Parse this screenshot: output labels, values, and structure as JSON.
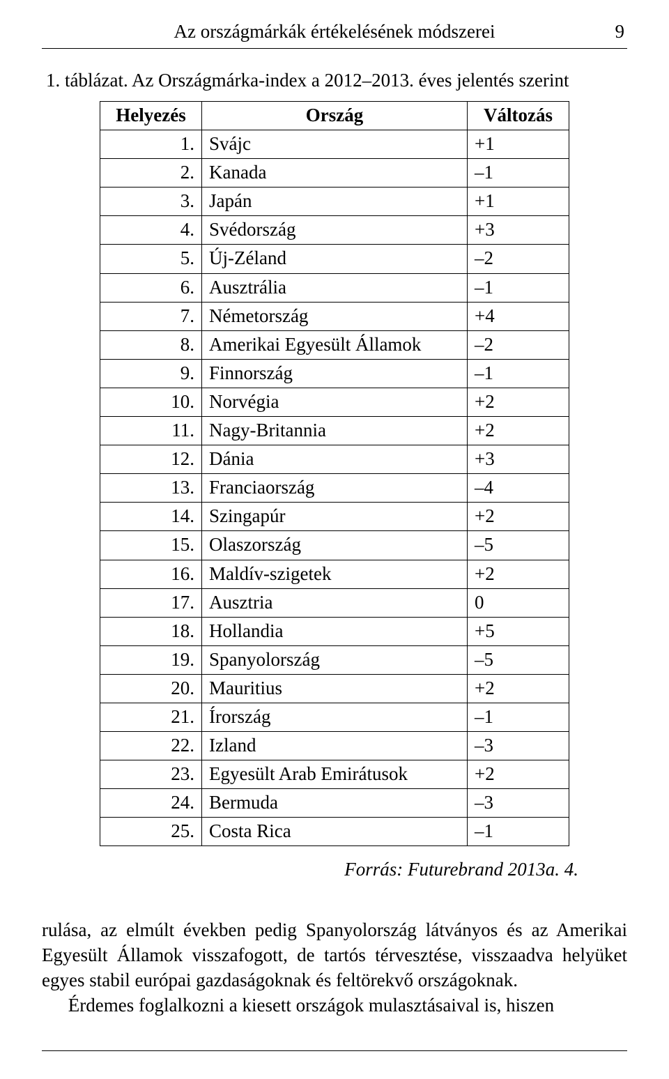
{
  "header": {
    "title": "Az országmárkák értékelésének módszerei",
    "page_number": "9"
  },
  "table": {
    "caption": "1. táblázat. Az Országmárka-index a 2012–2013. éves jelentés szerint",
    "columns": [
      "Helyezés",
      "Ország",
      "Változás"
    ],
    "rows": [
      [
        "1.",
        "Svájc",
        "+1"
      ],
      [
        "2.",
        "Kanada",
        "–1"
      ],
      [
        "3.",
        "Japán",
        "+1"
      ],
      [
        "4.",
        "Svédország",
        "+3"
      ],
      [
        "5.",
        "Új-Zéland",
        "–2"
      ],
      [
        "6.",
        "Ausztrália",
        "–1"
      ],
      [
        "7.",
        "Németország",
        "+4"
      ],
      [
        "8.",
        "Amerikai Egyesült Államok",
        "–2"
      ],
      [
        "9.",
        "Finnország",
        "–1"
      ],
      [
        "10.",
        "Norvégia",
        "+2"
      ],
      [
        "11.",
        "Nagy-Britannia",
        "+2"
      ],
      [
        "12.",
        "Dánia",
        "+3"
      ],
      [
        "13.",
        "Franciaország",
        "–4"
      ],
      [
        "14.",
        "Szingapúr",
        "+2"
      ],
      [
        "15.",
        "Olaszország",
        "–5"
      ],
      [
        "16.",
        "Maldív-szigetek",
        "+2"
      ],
      [
        "17.",
        "Ausztria",
        "0"
      ],
      [
        "18.",
        "Hollandia",
        "+5"
      ],
      [
        "19.",
        "Spanyolország",
        "–5"
      ],
      [
        "20.",
        "Mauritius",
        "+2"
      ],
      [
        "21.",
        "Írország",
        "–1"
      ],
      [
        "22.",
        "Izland",
        "–3"
      ],
      [
        "23.",
        "Egyesült Arab Emirátusok",
        "+2"
      ],
      [
        "24.",
        "Bermuda",
        "–3"
      ],
      [
        "25.",
        "Costa Rica",
        "–1"
      ]
    ],
    "source": "Forrás: Futurebrand 2013a. 4."
  },
  "body": {
    "p1": "rulása, az elmúlt években pedig Spanyolország látványos és az Amerikai Egyesült Államok visszafogott, de tartós térvesztése, visszaadva helyüket egyes stabil európai gazdaságoknak és feltörekvő országoknak.",
    "p2": "Érdemes foglalkozni a kiesett országok mulasztásaival is, hiszen"
  }
}
